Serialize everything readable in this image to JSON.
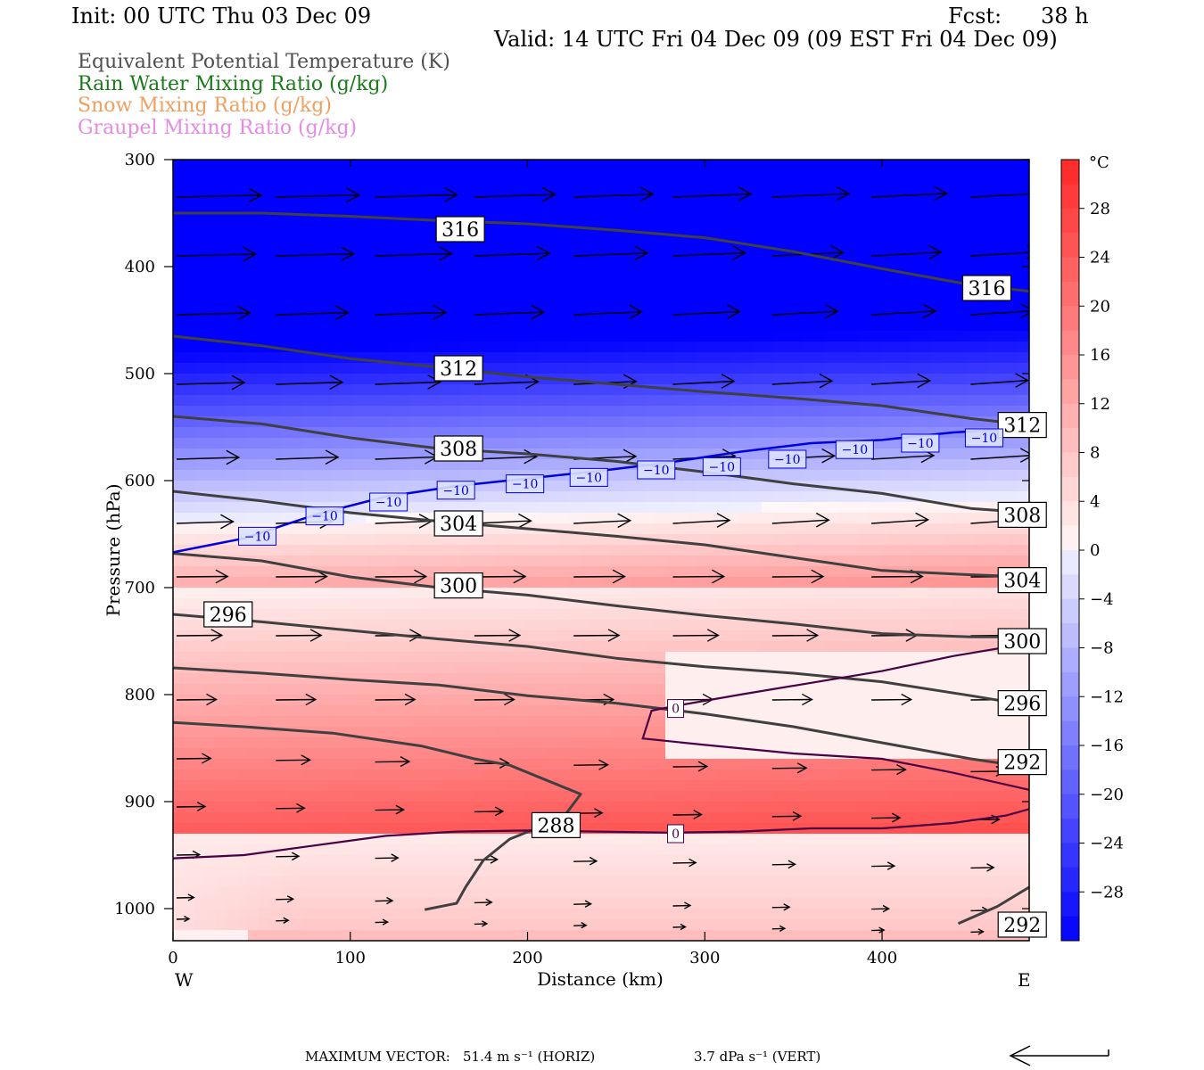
{
  "header": {
    "init": "Init: 00 UTC Thu 03 Dec 09",
    "fcst_label": "Fcst:",
    "fcst_value": "38 h",
    "valid": "Valid: 14 UTC Fri 04 Dec 09 (09 EST Fri 04 Dec 09)"
  },
  "legend": [
    {
      "label": "Equivalent Potential Temperature (K)",
      "color": "#505050"
    },
    {
      "label": "Rain Water Mixing Ratio (g/kg)",
      "color": "#1a7a1a"
    },
    {
      "label": "Snow Mixing Ratio (g/kg)",
      "color": "#f0a060"
    },
    {
      "label": "Graupel Mixing Ratio (g/kg)",
      "color": "#e58be5"
    }
  ],
  "chart_data": {
    "type": "cross-section",
    "xlabel": "Distance (km)",
    "ylabel": "Pressure (hPa)",
    "x_range": [
      0,
      483
    ],
    "y_range": [
      300,
      1030
    ],
    "x_ticks": [
      0,
      100,
      200,
      300,
      400
    ],
    "y_ticks": [
      300,
      400,
      500,
      600,
      700,
      800,
      900,
      1000
    ],
    "x_end_labels": {
      "left": "W",
      "right": "E"
    },
    "colorbar": {
      "unit": "°C",
      "tick_values": [
        28,
        24,
        20,
        16,
        12,
        8,
        4,
        0,
        -4,
        -8,
        -12,
        -16,
        -20,
        -24,
        -28
      ],
      "tick_labels": [
        "28",
        "24",
        "20",
        "16",
        "12",
        "8",
        "4",
        "0",
        "−4",
        "−8",
        "−12",
        "−16",
        "−20",
        "−24",
        "−28"
      ],
      "range": [
        -32,
        32
      ]
    },
    "theta_e_contours": [
      {
        "value": 316,
        "points": [
          [
            0,
            350
          ],
          [
            50,
            350
          ],
          [
            100,
            353
          ],
          [
            150,
            357
          ],
          [
            200,
            360
          ],
          [
            250,
            366
          ],
          [
            300,
            373
          ],
          [
            350,
            386
          ],
          [
            400,
            402
          ],
          [
            450,
            417
          ],
          [
            483,
            423
          ]
        ]
      },
      {
        "value": 312,
        "points": [
          [
            0,
            465
          ],
          [
            50,
            474
          ],
          [
            100,
            486
          ],
          [
            150,
            494
          ],
          [
            200,
            503
          ],
          [
            250,
            510
          ],
          [
            300,
            517
          ],
          [
            350,
            523
          ],
          [
            400,
            530
          ],
          [
            450,
            542
          ],
          [
            483,
            548
          ]
        ]
      },
      {
        "value": 308,
        "points": [
          [
            0,
            540
          ],
          [
            50,
            547
          ],
          [
            100,
            560
          ],
          [
            150,
            570
          ],
          [
            200,
            575
          ],
          [
            250,
            582
          ],
          [
            300,
            592
          ],
          [
            350,
            603
          ],
          [
            400,
            612
          ],
          [
            450,
            626
          ],
          [
            483,
            630
          ]
        ]
      },
      {
        "value": 304,
        "points": [
          [
            0,
            610
          ],
          [
            50,
            619
          ],
          [
            100,
            630
          ],
          [
            150,
            638
          ],
          [
            200,
            645
          ],
          [
            250,
            652
          ],
          [
            300,
            660
          ],
          [
            350,
            672
          ],
          [
            400,
            684
          ],
          [
            450,
            688
          ],
          [
            483,
            690
          ]
        ]
      },
      {
        "value": 300,
        "points": [
          [
            0,
            668
          ],
          [
            50,
            675
          ],
          [
            100,
            690
          ],
          [
            150,
            700
          ],
          [
            200,
            707
          ],
          [
            250,
            717
          ],
          [
            300,
            726
          ],
          [
            350,
            734
          ],
          [
            400,
            743
          ],
          [
            450,
            746
          ],
          [
            483,
            746
          ]
        ]
      },
      {
        "value": 296,
        "points": [
          [
            0,
            725
          ],
          [
            50,
            732
          ],
          [
            100,
            740
          ],
          [
            150,
            748
          ],
          [
            200,
            755
          ],
          [
            250,
            766
          ],
          [
            300,
            774
          ],
          [
            350,
            780
          ],
          [
            400,
            788
          ],
          [
            450,
            801
          ],
          [
            483,
            810
          ]
        ]
      },
      {
        "value": 292,
        "points": [
          [
            0,
            775
          ],
          [
            50,
            780
          ],
          [
            100,
            786
          ],
          [
            150,
            791
          ],
          [
            200,
            801
          ],
          [
            250,
            808
          ],
          [
            300,
            818
          ],
          [
            350,
            830
          ],
          [
            400,
            845
          ],
          [
            450,
            860
          ],
          [
            483,
            868
          ]
        ]
      },
      {
        "value": 288,
        "points": [
          [
            0,
            826
          ],
          [
            40,
            830
          ],
          [
            90,
            836
          ],
          [
            140,
            848
          ],
          [
            170,
            860
          ],
          [
            190,
            866
          ],
          [
            230,
            893
          ],
          [
            220,
            915
          ],
          [
            190,
            935
          ],
          [
            175,
            955
          ],
          [
            165,
            980
          ],
          [
            160,
            995
          ],
          [
            142,
            1001
          ]
        ]
      },
      {
        "value": 292,
        "points": [
          [
            443,
            1014
          ],
          [
            465,
            998
          ],
          [
            483,
            980
          ]
        ]
      }
    ],
    "theta_e_labels": [
      {
        "text": "316",
        "x": 149,
        "p": 365
      },
      {
        "text": "316",
        "x": 446,
        "p": 420
      },
      {
        "text": "312",
        "x": 148,
        "p": 495
      },
      {
        "text": "312",
        "x": 466,
        "p": 548
      },
      {
        "text": "308",
        "x": 148,
        "p": 570
      },
      {
        "text": "308",
        "x": 466,
        "p": 632
      },
      {
        "text": "304",
        "x": 148,
        "p": 640
      },
      {
        "text": "304",
        "x": 466,
        "p": 693
      },
      {
        "text": "300",
        "x": 148,
        "p": 698
      },
      {
        "text": "300",
        "x": 466,
        "p": 750
      },
      {
        "text": "296",
        "x": 18,
        "p": 725
      },
      {
        "text": "296",
        "x": 466,
        "p": 808
      },
      {
        "text": "292",
        "x": 466,
        "p": 863
      },
      {
        "text": "288",
        "x": 203,
        "p": 922
      },
      {
        "text": "292",
        "x": 466,
        "p": 1015
      }
    ],
    "isotherm_minus10": {
      "value": -10,
      "points": [
        [
          0,
          667
        ],
        [
          40,
          654
        ],
        [
          80,
          632
        ],
        [
          120,
          615
        ],
        [
          160,
          605
        ],
        [
          200,
          598
        ],
        [
          240,
          591
        ],
        [
          280,
          583
        ],
        [
          320,
          573
        ],
        [
          360,
          565
        ],
        [
          400,
          562
        ],
        [
          440,
          555
        ],
        [
          483,
          551
        ]
      ]
    },
    "isotherm_minus10_labels": [
      {
        "text": "−10",
        "x": 37,
        "p": 652
      },
      {
        "text": "−10",
        "x": 75,
        "p": 633
      },
      {
        "text": "−10",
        "x": 111,
        "p": 620
      },
      {
        "text": "−10",
        "x": 149,
        "p": 609
      },
      {
        "text": "−10",
        "x": 188,
        "p": 603
      },
      {
        "text": "−10",
        "x": 224,
        "p": 597
      },
      {
        "text": "−10",
        "x": 262,
        "p": 590
      },
      {
        "text": "−10",
        "x": 299,
        "p": 587
      },
      {
        "text": "−10",
        "x": 336,
        "p": 580
      },
      {
        "text": "−10",
        "x": 374,
        "p": 571
      },
      {
        "text": "−10",
        "x": 411,
        "p": 565
      },
      {
        "text": "−10",
        "x": 447,
        "p": 560
      }
    ],
    "isotherm_zero_upper": {
      "value": 0,
      "points": [
        [
          483,
          752
        ],
        [
          440,
          764
        ],
        [
          400,
          778
        ],
        [
          360,
          789
        ],
        [
          320,
          800
        ],
        [
          282,
          811
        ],
        [
          270,
          815
        ],
        [
          265,
          841
        ],
        [
          300,
          847
        ],
        [
          350,
          855
        ],
        [
          400,
          860
        ],
        [
          440,
          873
        ],
        [
          483,
          889
        ]
      ]
    },
    "isotherm_zero_lower": {
      "value": 0,
      "points": [
        [
          0,
          953
        ],
        [
          40,
          950
        ],
        [
          80,
          941
        ],
        [
          120,
          932
        ],
        [
          160,
          928
        ],
        [
          200,
          927
        ],
        [
          240,
          928
        ],
        [
          280,
          929
        ],
        [
          320,
          928
        ],
        [
          360,
          925
        ],
        [
          400,
          925
        ],
        [
          440,
          920
        ],
        [
          470,
          913
        ],
        [
          483,
          907
        ]
      ]
    },
    "isotherm_zero_labels": [
      {
        "text": "0",
        "x": 279,
        "p": 813
      },
      {
        "text": "0",
        "x": 279,
        "p": 930
      }
    ],
    "max_vector_text": "MAXIMUM VECTOR:",
    "max_horiz_text": "51.4 m s⁻¹ (HORIZ)",
    "max_vert_text": "3.7 dPa s⁻¹ (VERT)",
    "colors": {
      "theta_e": "#404040",
      "isotherm_cold": "#0000dd",
      "isotherm_zero": "#4a0044",
      "wind": "#000000"
    }
  }
}
